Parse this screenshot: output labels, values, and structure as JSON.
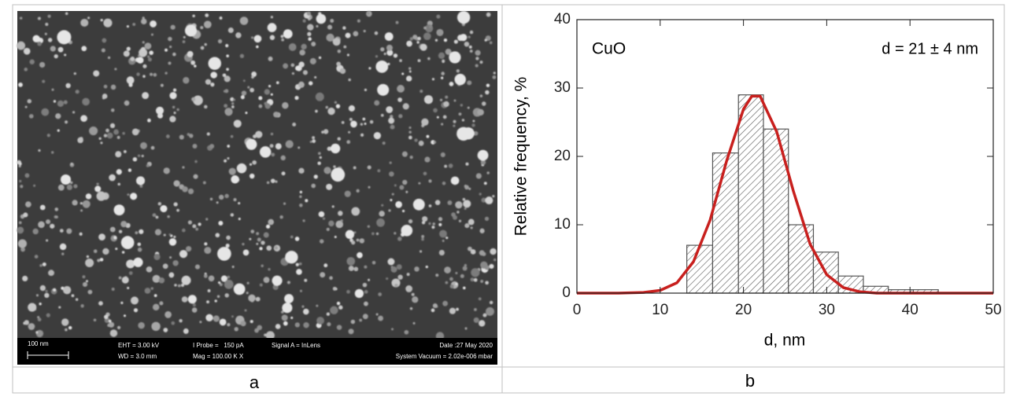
{
  "captions": [
    "a",
    "b"
  ],
  "sem_info": {
    "scale_bar": "100 nm",
    "eht": "EHT = 3.00 kV",
    "wd": "WD = 3.0 mm",
    "probe": "I Probe =   150 pA",
    "mag": "Mag = 100.00 K X",
    "signal": "Signal A = InLens",
    "date": "Date :27 May 2020",
    "vacuum": "System Vacuum = 2.02e-006 mbar"
  },
  "chart_data": {
    "type": "histogram",
    "annotation_left": "CuO",
    "annotation_right": "d = 21 ± 4 nm",
    "xlabel": "d, nm",
    "ylabel": "Relative frequency, %",
    "bins": [
      13.2,
      16.3,
      19.4,
      22.4,
      25.4,
      28.4,
      31.4,
      34.4,
      37.4,
      40.4,
      43.4
    ],
    "values": [
      7,
      20.5,
      29,
      24,
      10,
      6,
      2.5,
      1,
      0.5,
      0.5
    ],
    "color": "#555555",
    "fit": {
      "color": "#c8201e",
      "x": [
        0,
        5,
        8,
        10,
        12,
        14,
        16,
        18,
        20,
        21,
        22,
        24,
        26,
        28,
        30,
        32,
        34,
        36,
        40,
        45,
        50
      ],
      "values": [
        0,
        0,
        0.1,
        0.4,
        1.5,
        4.6,
        10.7,
        19.4,
        26.9,
        28.8,
        28.8,
        23.6,
        14.9,
        7.2,
        2.7,
        0.8,
        0.2,
        0,
        0,
        0,
        0
      ]
    },
    "xlim": [
      0,
      50
    ],
    "xticks": [
      0,
      10,
      20,
      30,
      40,
      50
    ],
    "ylim": [
      0,
      40
    ],
    "yticks": [
      0,
      10,
      20,
      30,
      40
    ]
  }
}
